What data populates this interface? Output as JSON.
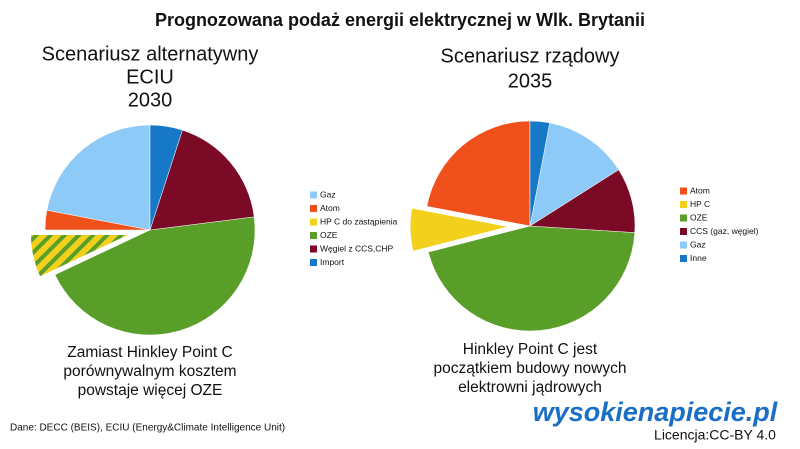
{
  "page": {
    "title": "Prognozowana podaż energii elektrycznej w Wlk. Brytanii",
    "source": "Dane: DECC (BEIS), ECIU (Energy&Climate Intelligence Unit)",
    "logo": "wysokienapiecie.pl",
    "license": "Licencja:CC-BY 4.0"
  },
  "chart_data": [
    {
      "type": "pie",
      "title": [
        "Scenariusz alternatywny",
        "ECIU",
        "2030"
      ],
      "categories": [
        "Gaz",
        "Atom",
        "HP C do zastąpienia",
        "OZE",
        "Węgiel z CCS,CHP",
        "Import"
      ],
      "values": [
        22,
        3,
        7,
        45,
        18,
        5
      ],
      "colors": [
        "#8ecaf7",
        "#f0501a",
        "#f2d01c",
        "#5a9e2a",
        "#7a0a26",
        "#1878c8"
      ],
      "explode": [
        false,
        false,
        true,
        false,
        false,
        false
      ],
      "hatch": [
        false,
        false,
        true,
        false,
        false,
        false
      ],
      "startangle": 90,
      "counterclock": true,
      "annotation": [
        "Zamiast Hinkley Point C",
        "porównywalnym kosztem",
        "powstaje więcej OZE"
      ]
    },
    {
      "type": "pie",
      "title": [
        "Scenariusz rządowy",
        "2035"
      ],
      "categories": [
        "Atom",
        "HP C",
        "OZE",
        "CCS (gaz, węgiel)",
        "Gaz",
        "Inne"
      ],
      "values": [
        22,
        7,
        45,
        10,
        13,
        3
      ],
      "colors": [
        "#f0501a",
        "#f2d01c",
        "#5a9e2a",
        "#7a0a26",
        "#8ecaf7",
        "#1878c8"
      ],
      "explode": [
        false,
        true,
        false,
        false,
        false,
        false
      ],
      "hatch": [
        false,
        false,
        false,
        false,
        false,
        false
      ],
      "startangle": 90,
      "counterclock": true,
      "annotation": [
        "Hinkley Point C jest",
        "początkiem budowy nowych",
        "elektrowni jądrowych"
      ]
    }
  ]
}
